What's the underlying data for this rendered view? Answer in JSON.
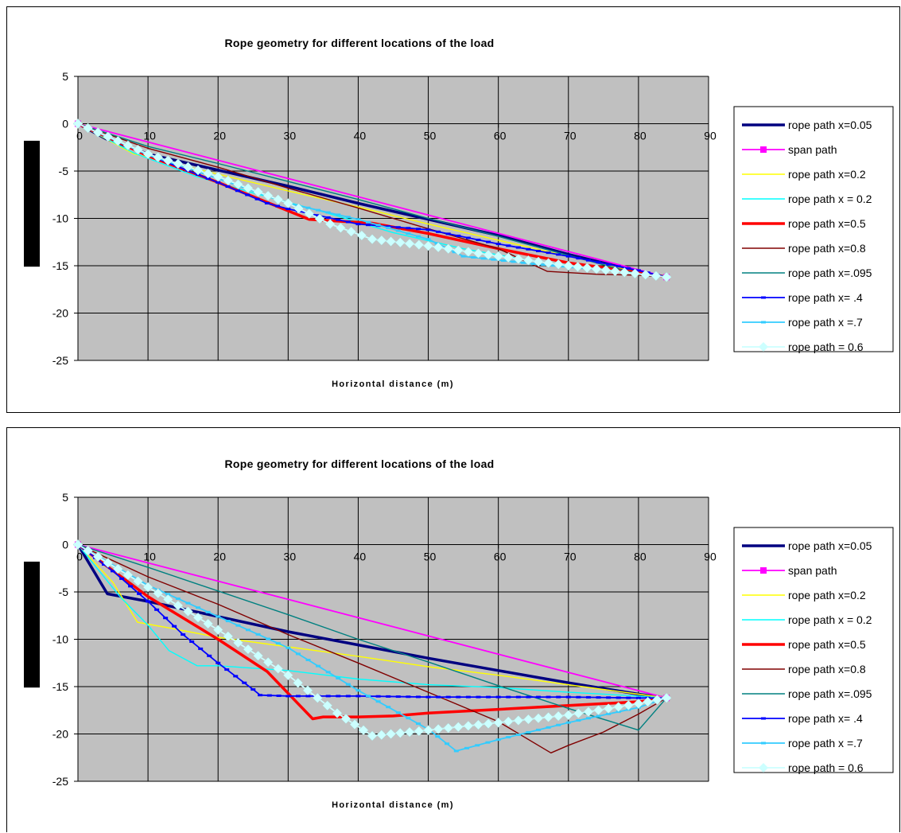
{
  "chart_data": [
    {
      "type": "line",
      "title": "Rope geometry for different locations of the load",
      "xlabel": "Horizontal distance (m)",
      "ylabel": "",
      "xlim": [
        0,
        90
      ],
      "ylim": [
        -25,
        5
      ],
      "x_ticks": [
        "0",
        "10",
        "20",
        "30",
        "40",
        "50",
        "60",
        "70",
        "80",
        "90"
      ],
      "y_ticks": [
        "5",
        "0",
        "-5",
        "-10",
        "-15",
        "-20",
        "-25"
      ],
      "grid": true,
      "plot_background": "#c0c0c0",
      "legend_position": "right",
      "series": [
        {
          "name": "rope path x=0.05",
          "color": "#000080",
          "marker": "none",
          "points": [
            [
              0,
              0
            ],
            [
              4,
              -1.6
            ],
            [
              10,
              -3.2
            ],
            [
              20,
              -4.9
            ],
            [
              30,
              -6.6
            ],
            [
              40,
              -8.4
            ],
            [
              50,
              -10.1
            ],
            [
              60,
              -11.8
            ],
            [
              70,
              -13.8
            ],
            [
              80,
              -15.6
            ],
            [
              84,
              -16.2
            ]
          ]
        },
        {
          "name": "span path",
          "color": "#ff00ff",
          "marker": "square",
          "points": [
            [
              0,
              0
            ],
            [
              84,
              -16.2
            ]
          ]
        },
        {
          "name": "rope path x=0.2",
          "color": "#ffff00",
          "marker": "none",
          "points": [
            [
              0,
              0
            ],
            [
              8,
              -3.2
            ],
            [
              17,
              -4.8
            ],
            [
              30,
              -7.1
            ],
            [
              40,
              -8.8
            ],
            [
              50,
              -10.6
            ],
            [
              60,
              -12.3
            ],
            [
              70,
              -14
            ],
            [
              80,
              -15.7
            ],
            [
              84,
              -16.2
            ]
          ]
        },
        {
          "name": "rope path x = 0.2",
          "color": "#00ffff",
          "marker": "none",
          "points": [
            [
              0,
              0
            ],
            [
              8,
              -3.1
            ],
            [
              17,
              -5.6
            ],
            [
              25,
              -7.3
            ],
            [
              35,
              -9.3
            ],
            [
              45,
              -11.5
            ],
            [
              55,
              -13.2
            ],
            [
              65,
              -14.5
            ],
            [
              75,
              -15.4
            ],
            [
              84,
              -16.2
            ]
          ]
        },
        {
          "name": "rope path x=0.5",
          "color": "#ff0000",
          "marker": "none",
          "points": [
            [
              0,
              0
            ],
            [
              10,
              -3.4
            ],
            [
              20,
              -6.2
            ],
            [
              30,
              -9.2
            ],
            [
              33,
              -10.1
            ],
            [
              42,
              -10.5
            ],
            [
              50,
              -11.6
            ],
            [
              60,
              -13.2
            ],
            [
              70,
              -14.7
            ],
            [
              80,
              -15.7
            ],
            [
              84,
              -16.2
            ]
          ]
        },
        {
          "name": "rope path x=0.8",
          "color": "#800000",
          "marker": "none",
          "points": [
            [
              0,
              0
            ],
            [
              10,
              -2.6
            ],
            [
              20,
              -4.6
            ],
            [
              30,
              -6.8
            ],
            [
              40,
              -8.9
            ],
            [
              50,
              -11.1
            ],
            [
              60,
              -13.2
            ],
            [
              67,
              -15.6
            ],
            [
              74,
              -15.9
            ],
            [
              80,
              -16
            ],
            [
              84,
              -16.2
            ]
          ]
        },
        {
          "name": "rope path x=.095",
          "color": "#008080",
          "marker": "none",
          "points": [
            [
              0,
              0
            ],
            [
              10,
              -2.4
            ],
            [
              20,
              -4.2
            ],
            [
              30,
              -6.1
            ],
            [
              40,
              -8
            ],
            [
              50,
              -10
            ],
            [
              60,
              -11.9
            ],
            [
              70,
              -13.9
            ],
            [
              80,
              -15.9
            ],
            [
              84,
              -16.2
            ]
          ]
        },
        {
          "name": "rope path x= .4",
          "color": "#0000ff",
          "marker": "dash",
          "points": [
            [
              0,
              0
            ],
            [
              10,
              -3.3
            ],
            [
              20,
              -6.2
            ],
            [
              27,
              -8.4
            ],
            [
              30,
              -9
            ],
            [
              40,
              -10.6
            ],
            [
              50,
              -11.2
            ],
            [
              60,
              -12.7
            ],
            [
              70,
              -14
            ],
            [
              80,
              -15.5
            ],
            [
              84,
              -16.2
            ]
          ]
        },
        {
          "name": "rope path x =.7",
          "color": "#33ccff",
          "marker": "dash",
          "points": [
            [
              0,
              0
            ],
            [
              10,
              -3.3
            ],
            [
              20,
              -5.8
            ],
            [
              30,
              -8.4
            ],
            [
              40,
              -10.1
            ],
            [
              50,
              -12.2
            ],
            [
              55,
              -14
            ],
            [
              65,
              -14.8
            ],
            [
              75,
              -15.4
            ],
            [
              84,
              -16.2
            ]
          ]
        },
        {
          "name": "rope path = 0.6",
          "color": "#ccffff",
          "marker": "diamond",
          "points": [
            [
              0,
              0
            ],
            [
              10,
              -3.2
            ],
            [
              20,
              -5.6
            ],
            [
              30,
              -8.4
            ],
            [
              36,
              -10.6
            ],
            [
              42,
              -12.2
            ],
            [
              50,
              -12.9
            ],
            [
              60,
              -14
            ],
            [
              70,
              -15
            ],
            [
              78,
              -15.7
            ],
            [
              84,
              -16.2
            ]
          ]
        }
      ]
    },
    {
      "type": "line",
      "title": "Rope geometry for different locations of the load",
      "xlabel": "Horizontal distance (m)",
      "ylabel": "",
      "xlim": [
        0,
        90
      ],
      "ylim": [
        -25,
        5
      ],
      "x_ticks": [
        "0",
        "10",
        "20",
        "30",
        "40",
        "50",
        "60",
        "70",
        "80",
        "90"
      ],
      "y_ticks": [
        "5",
        "0",
        "-5",
        "-10",
        "-15",
        "-20",
        "-25"
      ],
      "grid": true,
      "plot_background": "#c0c0c0",
      "legend_position": "right",
      "series": [
        {
          "name": "rope path x=0.05",
          "color": "#000080",
          "marker": "none",
          "points": [
            [
              0,
              0
            ],
            [
              4.2,
              -5.2
            ],
            [
              10,
              -6
            ],
            [
              20,
              -7.6
            ],
            [
              30,
              -9.2
            ],
            [
              40,
              -10.6
            ],
            [
              50,
              -12
            ],
            [
              60,
              -13.3
            ],
            [
              70,
              -14.6
            ],
            [
              80,
              -15.8
            ],
            [
              84,
              -16.2
            ]
          ]
        },
        {
          "name": "span path",
          "color": "#ff00ff",
          "marker": "square",
          "points": [
            [
              0,
              0
            ],
            [
              84,
              -16.2
            ]
          ]
        },
        {
          "name": "rope path x=0.2",
          "color": "#ffff00",
          "marker": "none",
          "points": [
            [
              0,
              0
            ],
            [
              5,
              -4
            ],
            [
              8.5,
              -8.2
            ],
            [
              10,
              -8.4
            ],
            [
              13,
              -8.8
            ],
            [
              20,
              -9.8
            ],
            [
              30,
              -10.8
            ],
            [
              40,
              -11.8
            ],
            [
              50,
              -12.9
            ],
            [
              60,
              -13.8
            ],
            [
              70,
              -14.8
            ],
            [
              80,
              -15.8
            ],
            [
              84,
              -16.2
            ]
          ]
        },
        {
          "name": "rope path x = 0.2",
          "color": "#00ffff",
          "marker": "none",
          "points": [
            [
              0,
              0
            ],
            [
              6,
              -5.5
            ],
            [
              10,
              -8.5
            ],
            [
              13,
              -11.2
            ],
            [
              17,
              -12.8
            ],
            [
              20,
              -12.8
            ],
            [
              30,
              -13.3
            ],
            [
              40,
              -14.2
            ],
            [
              50,
              -14.8
            ],
            [
              60,
              -15.1
            ],
            [
              70,
              -15.6
            ],
            [
              80,
              -16
            ],
            [
              84,
              -16.2
            ]
          ]
        },
        {
          "name": "rope path x=0.5",
          "color": "#ff0000",
          "marker": "none",
          "points": [
            [
              0,
              0
            ],
            [
              10,
              -5.5
            ],
            [
              20,
              -10
            ],
            [
              27,
              -13.4
            ],
            [
              33.5,
              -18.4
            ],
            [
              35,
              -18.2
            ],
            [
              40,
              -18.2
            ],
            [
              45,
              -18.1
            ],
            [
              50,
              -17.8
            ],
            [
              60,
              -17.4
            ],
            [
              70,
              -17
            ],
            [
              80,
              -16.6
            ],
            [
              84,
              -16.2
            ]
          ]
        },
        {
          "name": "rope path x=0.8",
          "color": "#800000",
          "marker": "none",
          "points": [
            [
              0,
              0
            ],
            [
              10,
              -3.4
            ],
            [
              20,
              -6.3
            ],
            [
              30,
              -9.5
            ],
            [
              40,
              -12.5
            ],
            [
              50,
              -15.6
            ],
            [
              60,
              -18.7
            ],
            [
              67.5,
              -22
            ],
            [
              70,
              -21.2
            ],
            [
              75,
              -19.8
            ],
            [
              80,
              -17.9
            ],
            [
              84,
              -16.2
            ]
          ]
        },
        {
          "name": "rope path x=.095",
          "color": "#008080",
          "marker": "none",
          "points": [
            [
              0,
              0
            ],
            [
              10,
              -2.4
            ],
            [
              20,
              -4.9
            ],
            [
              30,
              -7.4
            ],
            [
              40,
              -10
            ],
            [
              50,
              -12.4
            ],
            [
              60,
              -14.9
            ],
            [
              70,
              -17.3
            ],
            [
              80,
              -19.6
            ],
            [
              84,
              -16.2
            ]
          ]
        },
        {
          "name": "rope path x= .4",
          "color": "#0000ff",
          "marker": "dash",
          "points": [
            [
              0,
              0
            ],
            [
              5,
              -2.8
            ],
            [
              10,
              -6
            ],
            [
              15,
              -9.5
            ],
            [
              20,
              -12.5
            ],
            [
              25,
              -15.3
            ],
            [
              26,
              -15.9
            ],
            [
              30,
              -16
            ],
            [
              40,
              -16
            ],
            [
              50,
              -16.1
            ],
            [
              60,
              -16.1
            ],
            [
              70,
              -16.1
            ],
            [
              80,
              -16.2
            ],
            [
              84,
              -16.2
            ]
          ]
        },
        {
          "name": "rope path x =.7",
          "color": "#33ccff",
          "marker": "dash",
          "points": [
            [
              0,
              0
            ],
            [
              10,
              -4.3
            ],
            [
              20,
              -7.6
            ],
            [
              30,
              -10.9
            ],
            [
              40,
              -15.4
            ],
            [
              50,
              -19.5
            ],
            [
              54,
              -21.8
            ],
            [
              60,
              -20.6
            ],
            [
              70,
              -18.8
            ],
            [
              80,
              -17.2
            ],
            [
              84,
              -16.2
            ]
          ]
        },
        {
          "name": "rope path = 0.6",
          "color": "#ccffff",
          "marker": "diamond",
          "points": [
            [
              0,
              0
            ],
            [
              10,
              -4.5
            ],
            [
              20,
              -9
            ],
            [
              30,
              -13.8
            ],
            [
              37,
              -17.8
            ],
            [
              42,
              -20.2
            ],
            [
              50,
              -19.6
            ],
            [
              60,
              -18.8
            ],
            [
              70,
              -18
            ],
            [
              80,
              -16.8
            ],
            [
              84,
              -16.2
            ]
          ]
        }
      ]
    }
  ]
}
